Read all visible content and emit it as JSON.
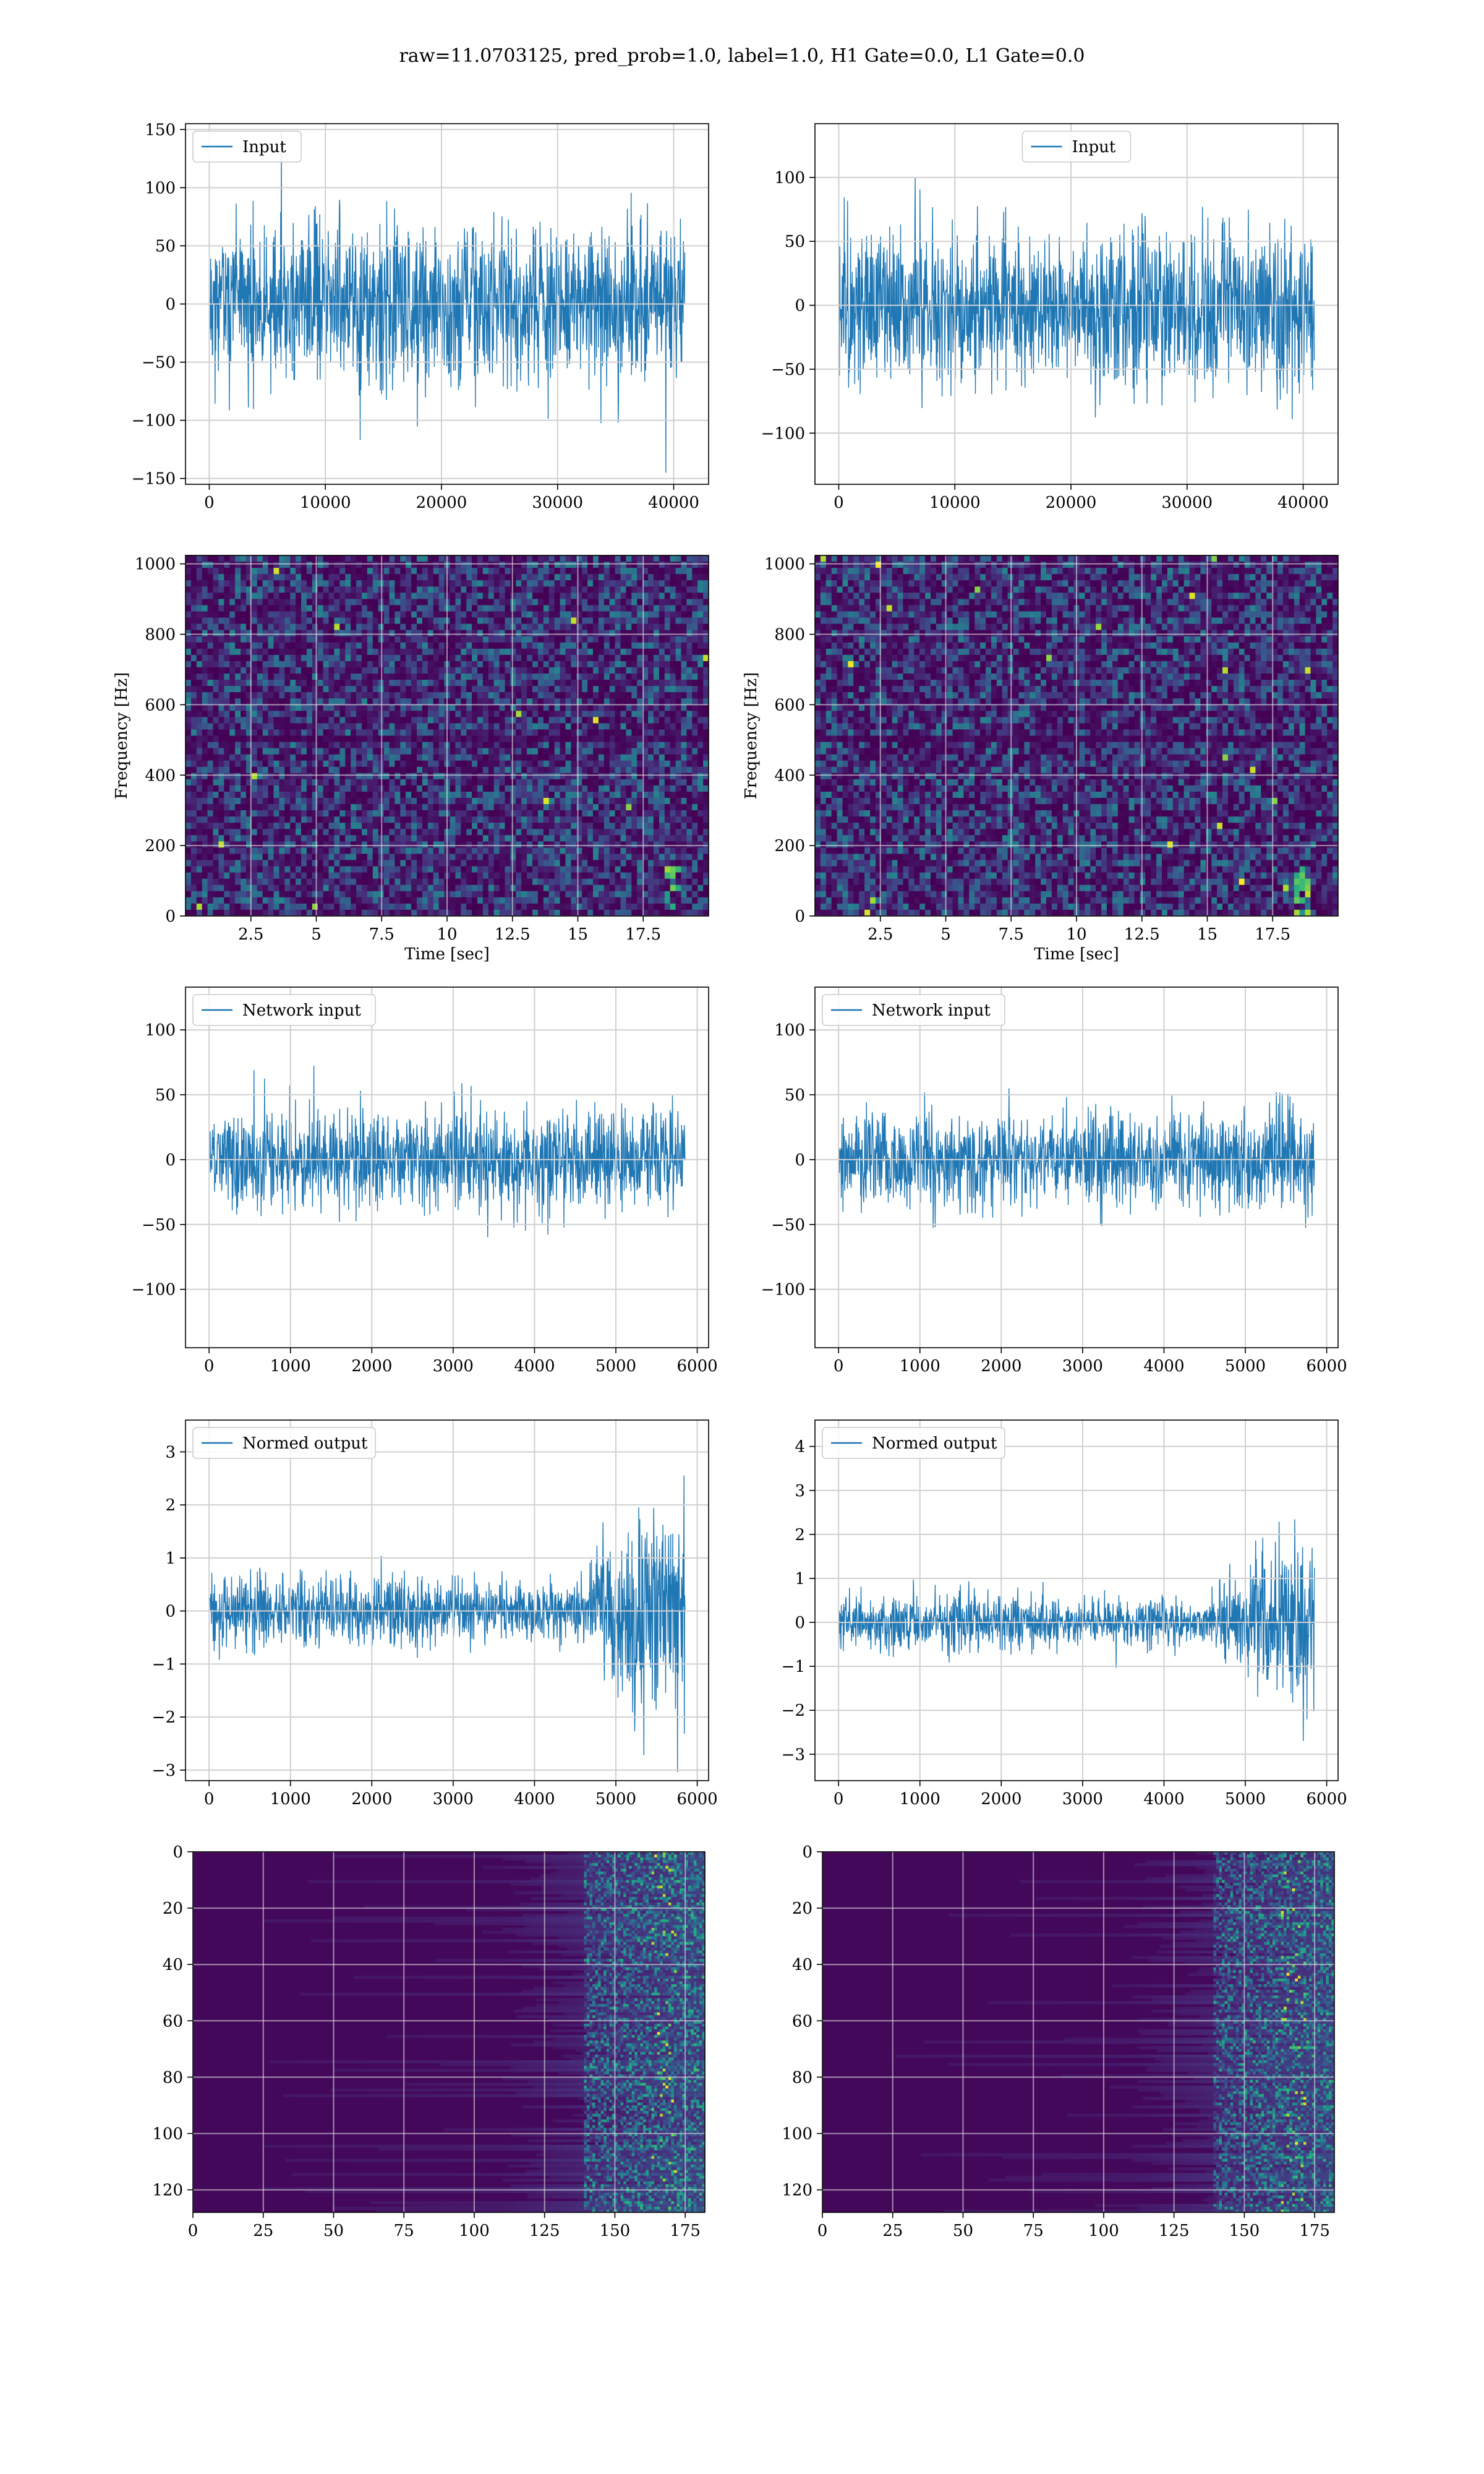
{
  "figure": {
    "title": "raw=11.0703125, pred_prob=1.0, label=1.0, H1 Gate=0.0, L1 Gate=0.0"
  },
  "colors": {
    "line": "#1f77b4",
    "grid": "#d0d0d0"
  },
  "chart_data": [
    {
      "id": "input_h1",
      "type": "line",
      "legend": "Input",
      "legend_position": "top-left",
      "grid": true,
      "x_range": [
        0,
        40960
      ],
      "xlim": [
        -2048,
        43008
      ],
      "ylim": [
        -155,
        155
      ],
      "amplitude": 56,
      "envelope": "flat",
      "seed": 11,
      "xticks": [
        0,
        10000,
        20000,
        30000,
        40000
      ],
      "yticks": [
        -150,
        -100,
        -50,
        0,
        50,
        100,
        150
      ]
    },
    {
      "id": "input_l1",
      "type": "line",
      "legend": "Input",
      "legend_position": "top-center",
      "grid": true,
      "x_range": [
        0,
        40960
      ],
      "xlim": [
        -2048,
        43008
      ],
      "ylim": [
        -140,
        142
      ],
      "amplitude": 50,
      "envelope": "flat",
      "seed": 23,
      "xticks": [
        0,
        10000,
        20000,
        30000,
        40000
      ],
      "yticks": [
        -100,
        -50,
        0,
        50,
        100
      ]
    },
    {
      "id": "spec_h1",
      "type": "heatmap",
      "grid": true,
      "xlabel": "Time [sec]",
      "ylabel": "Frequency [Hz]",
      "xlim": [
        0,
        20
      ],
      "ylim": [
        0,
        1024
      ],
      "seed": 5,
      "xticks": [
        2.5,
        5.0,
        7.5,
        10.0,
        12.5,
        15.0,
        17.5
      ],
      "yticks": [
        0,
        200,
        400,
        600,
        800,
        1000
      ]
    },
    {
      "id": "spec_l1",
      "type": "heatmap",
      "grid": true,
      "xlabel": "Time [sec]",
      "ylabel": "Frequency [Hz]",
      "xlim": [
        0,
        20
      ],
      "ylim": [
        0,
        1024
      ],
      "seed": 9,
      "xticks": [
        2.5,
        5.0,
        7.5,
        10.0,
        12.5,
        15.0,
        17.5
      ],
      "yticks": [
        0,
        200,
        400,
        600,
        800,
        1000
      ]
    },
    {
      "id": "netin_h1",
      "type": "line",
      "legend": "Network input",
      "legend_position": "top-left",
      "grid": true,
      "x_range": [
        0,
        5850
      ],
      "xlim": [
        -290,
        6140
      ],
      "ylim": [
        -145,
        133
      ],
      "amplitude": 32,
      "envelope": "flat",
      "seed": 31,
      "xticks": [
        0,
        1000,
        2000,
        3000,
        4000,
        5000,
        6000
      ],
      "yticks": [
        -100,
        -50,
        0,
        50,
        100
      ]
    },
    {
      "id": "netin_l1",
      "type": "line",
      "legend": "Network input",
      "legend_position": "top-left",
      "grid": true,
      "x_range": [
        0,
        5850
      ],
      "xlim": [
        -290,
        6140
      ],
      "ylim": [
        -145,
        133
      ],
      "amplitude": 30,
      "envelope": "flat",
      "seed": 37,
      "xticks": [
        0,
        1000,
        2000,
        3000,
        4000,
        5000,
        6000
      ],
      "yticks": [
        -100,
        -50,
        0,
        50,
        100
      ]
    },
    {
      "id": "normed_h1",
      "type": "line",
      "legend": "Normed output",
      "legend_position": "top-left",
      "grid": true,
      "x_range": [
        0,
        5850
      ],
      "xlim": [
        -290,
        6140
      ],
      "ylim": [
        -3.2,
        3.6
      ],
      "amplitude": 0.55,
      "envelope": "rise_end",
      "seed": 41,
      "xticks": [
        0,
        1000,
        2000,
        3000,
        4000,
        5000,
        6000
      ],
      "yticks": [
        -3,
        -2,
        -1,
        0,
        1,
        2,
        3
      ]
    },
    {
      "id": "normed_l1",
      "type": "line",
      "legend": "Normed output",
      "legend_position": "top-left",
      "grid": true,
      "x_range": [
        0,
        5850
      ],
      "xlim": [
        -290,
        6140
      ],
      "ylim": [
        -3.6,
        4.6
      ],
      "amplitude": 0.5,
      "envelope": "rise_end",
      "seed": 43,
      "xticks": [
        0,
        1000,
        2000,
        3000,
        4000,
        5000,
        6000
      ],
      "yticks": [
        -3,
        -2,
        -1,
        0,
        1,
        2,
        3,
        4
      ]
    },
    {
      "id": "feat_h1",
      "type": "heatmap",
      "grid": true,
      "xlim": [
        0,
        182
      ],
      "ylim": [
        128,
        0
      ],
      "seed": 51,
      "xticks": [
        0,
        25,
        50,
        75,
        100,
        125,
        150,
        175
      ],
      "yticks": [
        0,
        20,
        40,
        60,
        80,
        100,
        120
      ]
    },
    {
      "id": "feat_l1",
      "type": "heatmap",
      "grid": true,
      "xlim": [
        0,
        182
      ],
      "ylim": [
        128,
        0
      ],
      "seed": 53,
      "xticks": [
        0,
        25,
        50,
        75,
        100,
        125,
        150,
        175
      ],
      "yticks": [
        0,
        20,
        40,
        60,
        80,
        100,
        120
      ]
    }
  ]
}
